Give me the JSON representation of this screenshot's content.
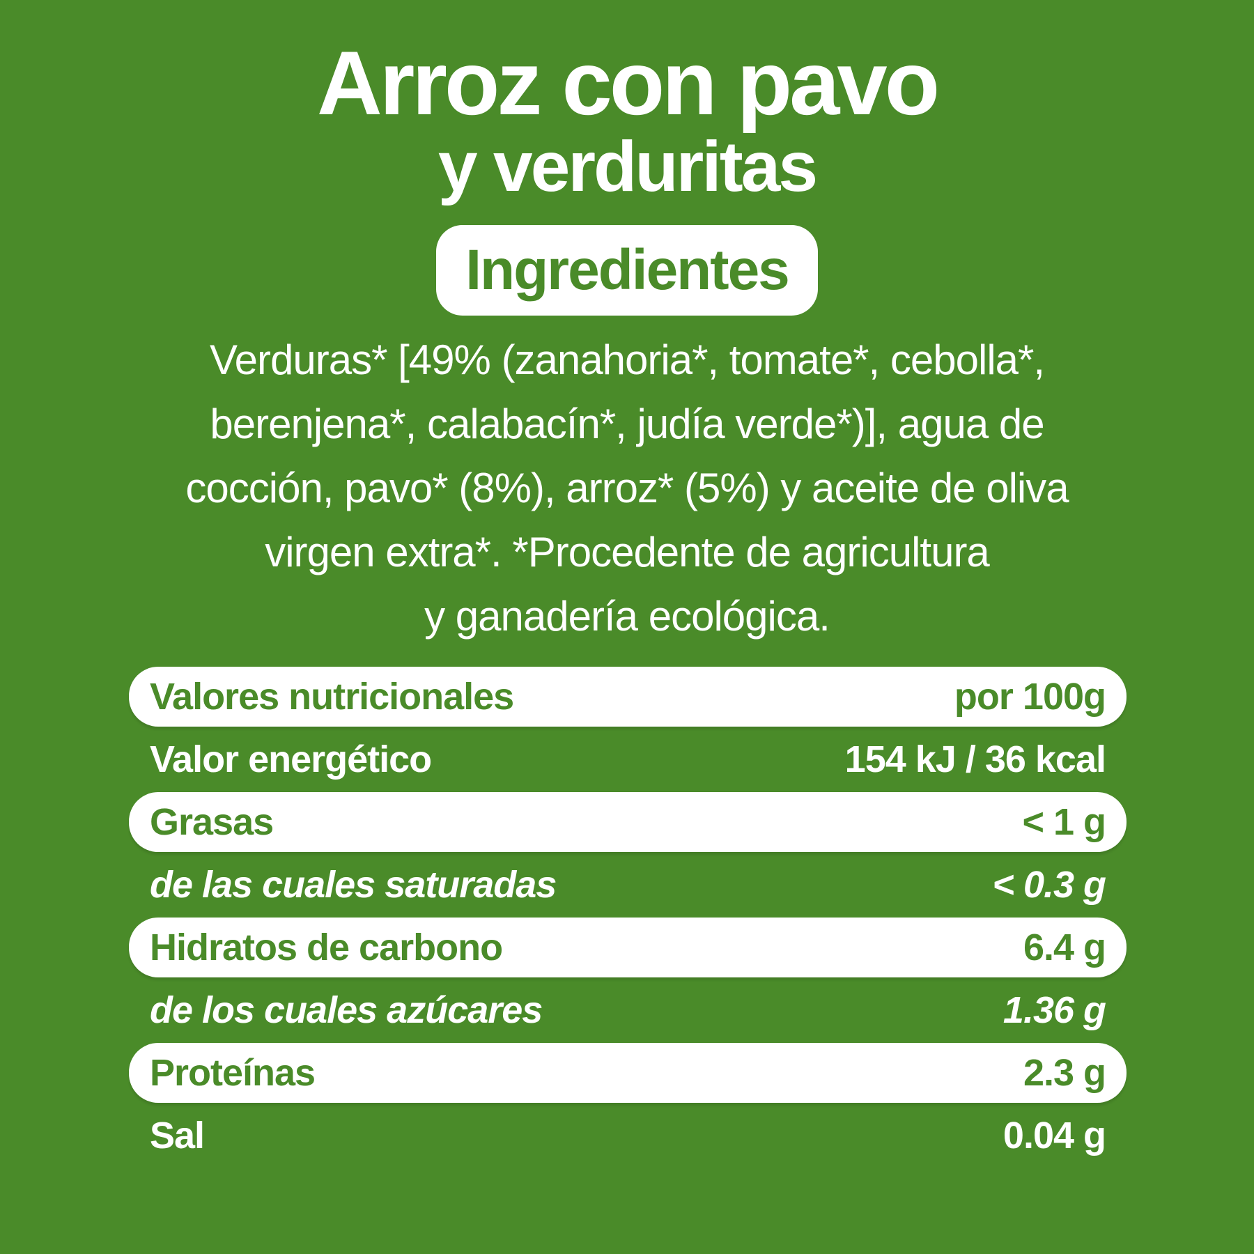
{
  "colors": {
    "background_green": "#4a8b29",
    "text_white": "#ffffff",
    "pill_background": "#ffffff",
    "pill_text_green": "#4a8b29"
  },
  "title": {
    "line1": "Arroz con pavo",
    "line2": "y verduritas"
  },
  "badge": {
    "label": "Ingredientes"
  },
  "ingredients": {
    "text": "Verduras* [49% (zanahoria*, tomate*, cebolla*,\nberenjena*, calabacín*, judía verde*)], agua de\ncocción, pavo* (8%), arroz* (5%) y aceite de oliva\nvirgen extra*. *Procedente de agricultura\ny ganadería ecológica."
  },
  "nutrition": {
    "rows": [
      {
        "label": "Valores nutricionales",
        "value": "por 100g",
        "pill": true,
        "italic": false
      },
      {
        "label": "Valor energético",
        "value": "154 kJ / 36 kcal",
        "pill": false,
        "italic": false
      },
      {
        "label": "Grasas",
        "value": "< 1 g",
        "pill": true,
        "italic": false
      },
      {
        "label": "de las cuales saturadas",
        "value": "< 0.3 g",
        "pill": false,
        "italic": true
      },
      {
        "label": "Hidratos de carbono",
        "value": "6.4 g",
        "pill": true,
        "italic": false
      },
      {
        "label": "de los cuales azúcares",
        "value": "1.36 g",
        "pill": false,
        "italic": true
      },
      {
        "label": "Proteínas",
        "value": "2.3 g",
        "pill": true,
        "italic": false
      },
      {
        "label": "Sal",
        "value": "0.04 g",
        "pill": false,
        "italic": false
      }
    ]
  }
}
